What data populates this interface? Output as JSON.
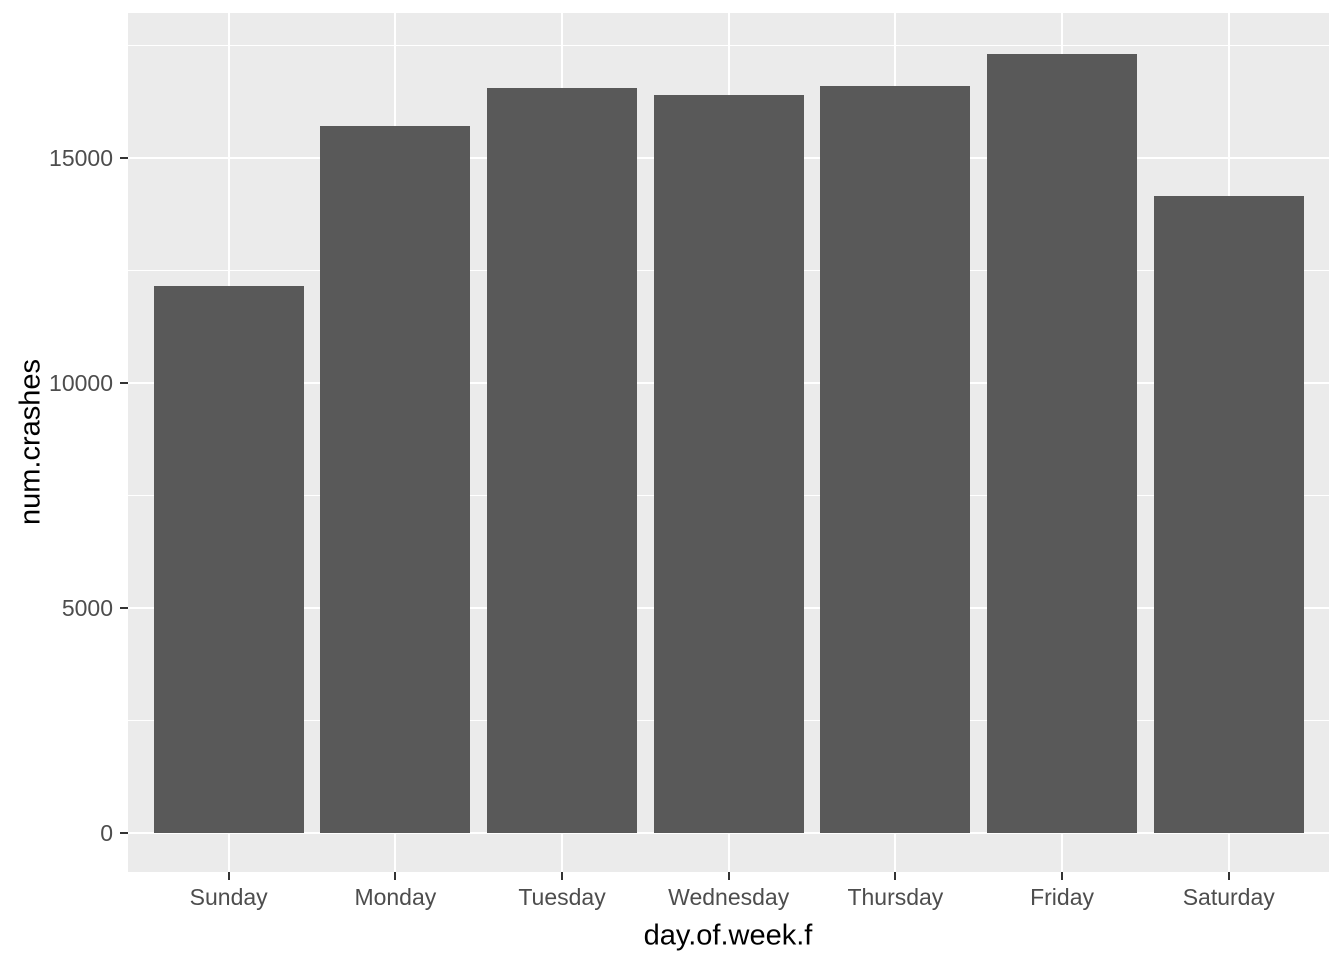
{
  "chart_data": {
    "type": "bar",
    "title": "",
    "xlabel": "day.of.week.f",
    "ylabel": "num.crashes",
    "categories": [
      "Sunday",
      "Monday",
      "Tuesday",
      "Wednesday",
      "Thursday",
      "Friday",
      "Saturday"
    ],
    "values": [
      12150,
      15700,
      16550,
      16400,
      16600,
      17300,
      14150
    ],
    "y_ticks": [
      0,
      5000,
      10000,
      15000
    ],
    "y_minor_gridlines": [
      2500,
      7500,
      12500,
      17500
    ],
    "ylim": [
      0,
      18200
    ],
    "grid": "major-and-minor-horizontal, major-vertical-at-category-centers",
    "legend": "none",
    "colors": {
      "bar_fill": "#595959",
      "panel_background": "#EBEBEB",
      "gridline": "#FFFFFF",
      "tick_mark": "#333333",
      "tick_label": "#4D4D4D",
      "axis_title": "#000000",
      "figure_background": "#FFFFFF"
    }
  }
}
